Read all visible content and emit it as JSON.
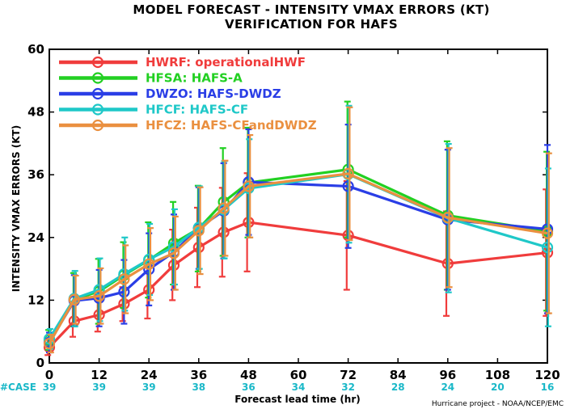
{
  "chart_data": {
    "type": "line",
    "title": "MODEL FORECAST - INTENSITY VMAX ERRORS (KT)",
    "subtitle": "VERIFICATION FOR HAFS",
    "xlabel": "Forecast lead time (hr)",
    "ylabel": "INTENSITY VMAX ERRORS (KT)",
    "credit": "Hurricane project - NOAA/NCEP/EMC",
    "xlim": [
      0,
      120
    ],
    "ylim": [
      0,
      60
    ],
    "x_ticks": [
      0,
      12,
      24,
      36,
      48,
      60,
      72,
      84,
      96,
      108,
      120
    ],
    "y_ticks": [
      0,
      12,
      24,
      36,
      48,
      60
    ],
    "legend_position": "top-left",
    "case_label": "#CASE",
    "case_color": "#1ab8c8",
    "cases": [
      {
        "x": 0,
        "n": "39"
      },
      {
        "x": 12,
        "n": "39"
      },
      {
        "x": 24,
        "n": "39"
      },
      {
        "x": 36,
        "n": "38"
      },
      {
        "x": 48,
        "n": "36"
      },
      {
        "x": 60,
        "n": "34"
      },
      {
        "x": 72,
        "n": "32"
      },
      {
        "x": 84,
        "n": "28"
      },
      {
        "x": 96,
        "n": "24"
      },
      {
        "x": 108,
        "n": "20"
      },
      {
        "x": 120,
        "n": "16"
      }
    ],
    "series": [
      {
        "name": "HWRF: operationalHWF",
        "color": "#f03c3c",
        "x": [
          0,
          6,
          12,
          18,
          24,
          30,
          36,
          42,
          48,
          72,
          96,
          120
        ],
        "y": [
          3,
          8,
          9.2,
          11.3,
          14,
          18.7,
          22.1,
          25,
          26.9,
          24.4,
          19,
          21.1
        ],
        "err": [
          [
            1.5,
            4.5
          ],
          [
            5,
            11
          ],
          [
            6,
            12.5
          ],
          [
            8,
            14.5
          ],
          [
            8.5,
            19.5
          ],
          [
            12,
            25.5
          ],
          [
            14.5,
            29.7
          ],
          [
            16.5,
            33.5
          ],
          [
            17.5,
            36.3
          ],
          [
            14,
            34.8
          ],
          [
            9,
            29
          ],
          [
            9,
            33.2
          ]
        ]
      },
      {
        "name": "HFSA: HAFS-A",
        "color": "#22d022",
        "x": [
          0,
          6,
          12,
          18,
          24,
          30,
          36,
          42,
          48,
          72,
          96,
          120
        ],
        "y": [
          4.4,
          12.1,
          13.7,
          16.8,
          19.7,
          22.9,
          25.7,
          30.8,
          34.5,
          37,
          28.2,
          25.2
        ],
        "err": [
          [
            2.5,
            6.3
          ],
          [
            7,
            17.2
          ],
          [
            7.5,
            19.9
          ],
          [
            10.5,
            23.1
          ],
          [
            12.5,
            26.9
          ],
          [
            15,
            30.8
          ],
          [
            17.5,
            33.9
          ],
          [
            20.5,
            41.1
          ],
          [
            24,
            45
          ],
          [
            24,
            50
          ],
          [
            14,
            42.4
          ],
          [
            10,
            40.4
          ]
        ]
      },
      {
        "name": "DWZO: HAFS-DWDZ",
        "color": "#2a3ee6",
        "x": [
          0,
          6,
          12,
          18,
          24,
          30,
          36,
          42,
          48,
          72,
          96,
          120
        ],
        "y": [
          3.9,
          11.9,
          12.4,
          13.6,
          17.9,
          21.2,
          25.8,
          29.1,
          34.6,
          33.8,
          27.4,
          25.6
        ],
        "err": [
          [
            2,
            5.8
          ],
          [
            7,
            16.8
          ],
          [
            7,
            17.8
          ],
          [
            7.5,
            19.7
          ],
          [
            11,
            24.8
          ],
          [
            14,
            28.4
          ],
          [
            18,
            33.6
          ],
          [
            20,
            38.2
          ],
          [
            24.5,
            44.7
          ],
          [
            22,
            45.6
          ],
          [
            14,
            40.8
          ],
          [
            9.5,
            41.7
          ]
        ]
      },
      {
        "name": "HFCF: HAFS-CF",
        "color": "#1fc8c8",
        "x": [
          0,
          6,
          12,
          18,
          24,
          30,
          36,
          42,
          48,
          72,
          96,
          120
        ],
        "y": [
          4.6,
          12.3,
          14,
          17,
          19.8,
          22.2,
          25.9,
          29.3,
          33.4,
          36.1,
          27.7,
          22.1
        ],
        "err": [
          [
            2.7,
            6.5
          ],
          [
            7,
            17.6
          ],
          [
            8,
            20
          ],
          [
            10,
            24
          ],
          [
            13,
            26.6
          ],
          [
            15,
            29.4
          ],
          [
            18,
            33.8
          ],
          [
            20,
            38.6
          ],
          [
            24,
            42.8
          ],
          [
            23,
            49.2
          ],
          [
            13.5,
            41.9
          ],
          [
            7,
            37.2
          ]
        ]
      },
      {
        "name": "HFCZ: HAFS-CFandDWDZ",
        "color": "#ea9040",
        "x": [
          0,
          6,
          12,
          18,
          24,
          30,
          36,
          42,
          48,
          72,
          96,
          120
        ],
        "y": [
          3.7,
          12.1,
          12.8,
          16,
          18.9,
          21,
          25.3,
          29.6,
          33.8,
          36.2,
          27.8,
          24.8
        ],
        "err": [
          [
            2,
            5.4
          ],
          [
            7.5,
            16.7
          ],
          [
            7.5,
            18.1
          ],
          [
            9.5,
            22.5
          ],
          [
            12,
            25.8
          ],
          [
            14,
            28
          ],
          [
            17,
            33.6
          ],
          [
            20.5,
            38.7
          ],
          [
            24,
            43.6
          ],
          [
            23.5,
            48.9
          ],
          [
            14.5,
            41.1
          ],
          [
            9.5,
            40.1
          ]
        ]
      }
    ]
  }
}
